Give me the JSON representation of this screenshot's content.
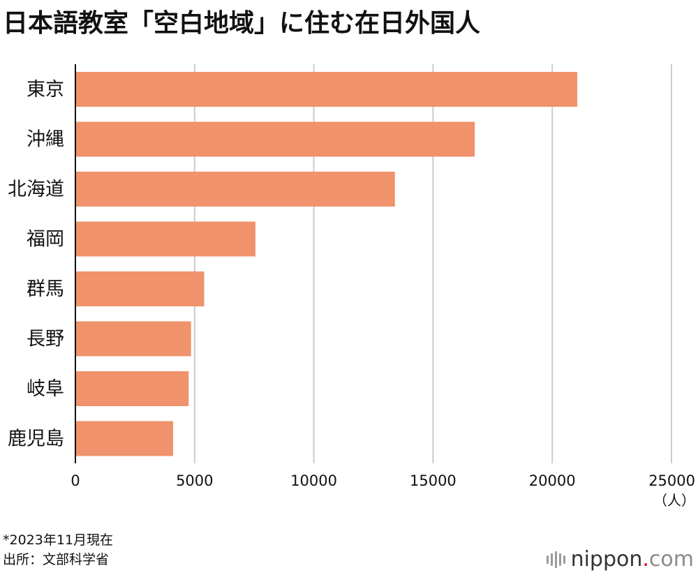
{
  "title": "日本語教室「空白地域」に住む在日外国人",
  "chart_data": {
    "type": "bar",
    "orientation": "horizontal",
    "categories": [
      "東京",
      "沖縄",
      "北海道",
      "福岡",
      "群馬",
      "長野",
      "岐阜",
      "鹿児島"
    ],
    "values": [
      21050,
      16750,
      13400,
      7550,
      5400,
      4850,
      4750,
      4100
    ],
    "xlim": [
      0,
      25000
    ],
    "xticks": [
      "0",
      "5000",
      "10000",
      "15000",
      "20000",
      "25000"
    ],
    "unit_label": "（人）",
    "bar_color": "#f0926b",
    "grid": "vertical",
    "grid_color": "#cccccc"
  },
  "notes": {
    "line1": "*2023年11月現在",
    "line2": "出所：文部科学省"
  },
  "logo": {
    "name": "nippon",
    "dot": ".",
    "suffix": "com"
  }
}
